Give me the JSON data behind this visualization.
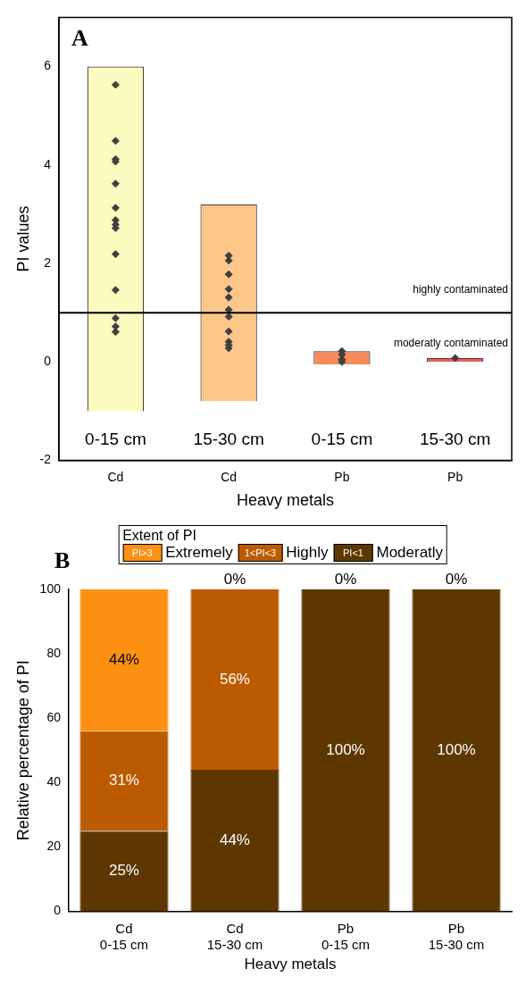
{
  "chart_data": [
    {
      "type": "scatter",
      "xlabel": "Heavy metals",
      "ylabel": "PI values",
      "categories": [
        "Cd",
        "Cd",
        "Pb",
        "Pb"
      ],
      "ylim": [
        -2,
        7
      ],
      "yticks": [
        -2,
        0,
        2,
        4,
        6
      ],
      "grid": false,
      "marker": "diamond",
      "series": [
        {
          "type": "bar",
          "colors": [
            "#fafcc0",
            "#fdc78a",
            "#f88a5c",
            "#ee5a56"
          ],
          "base": [
            -1,
            -0.8,
            -0.05,
            0
          ],
          "values": [
            7,
            4,
            0.27,
            0.08
          ]
        },
        {
          "color": "#404040",
          "values": [
            5.63,
            2.16,
            0.22,
            0.08
          ]
        },
        {
          "color": "#404040",
          "values": [
            4.49,
            2.06,
            0.15,
            null
          ]
        },
        {
          "color": "#404040",
          "values": [
            4.12,
            1.78,
            null,
            null
          ]
        },
        {
          "color": "#404040",
          "values": [
            4.07,
            1.48,
            0.05,
            null
          ]
        },
        {
          "color": "#404040",
          "values": [
            3.62,
            1.31,
            0.0,
            null
          ]
        },
        {
          "color": "#404040",
          "values": [
            3.13,
            1.06,
            null,
            null
          ]
        },
        {
          "color": "#404040",
          "values": [
            2.88,
            0.92,
            null,
            null
          ]
        },
        {
          "color": "#404040",
          "values": [
            2.79,
            0.62,
            null,
            null
          ]
        },
        {
          "color": "#404040",
          "values": [
            2.72,
            0.41,
            null,
            null
          ]
        },
        {
          "color": "#404040",
          "values": [
            2.19,
            0.34,
            null,
            null
          ]
        },
        {
          "color": "#404040",
          "values": [
            1.46,
            0.28,
            null,
            null
          ]
        },
        {
          "color": "#404040",
          "values": [
            0.89,
            null,
            null,
            null
          ]
        },
        {
          "color": "#404040",
          "values": [
            0.72,
            null,
            null,
            null
          ]
        },
        {
          "color": "#404040",
          "values": [
            null,
            null,
            null,
            null
          ]
        },
        {
          "color": "#404040",
          "values": [
            0.61,
            null,
            null,
            null
          ]
        }
      ],
      "ref_lines": [
        {
          "axis": "y",
          "value": 1,
          "color": "#000000",
          "label": "highly contaminated"
        }
      ],
      "annotations": [
        "A",
        "0-15 cm",
        "15-30 cm",
        "0-15 cm",
        "15-30 cm",
        "moderatly contaminated"
      ]
    },
    {
      "type": "bar",
      "stacked": true,
      "xlabel": "Heavy metals",
      "ylabel": "Relative percentage of PI",
      "categories": [
        "Cd 0-15 cm",
        "Cd 15-30 cm",
        "Pb 0-15 cm",
        "Pb 15-30 cm"
      ],
      "ylim": [
        0,
        100
      ],
      "yticks": [
        0,
        20,
        40,
        60,
        80,
        100
      ],
      "grid": false,
      "legend": "top",
      "legend_title": "Extent of PI",
      "series": [
        {
          "name": "PI<1 Moderatly",
          "color": "#5e3700",
          "values": [
            25,
            44,
            100,
            100
          ],
          "value_labels": [
            "25%",
            "44%",
            "100%",
            "100%"
          ]
        },
        {
          "name": "1<PI<3 Highly",
          "color": "#bb5a00",
          "values": [
            31,
            56,
            0,
            0
          ],
          "value_labels": [
            "31%",
            "56%",
            null,
            null
          ]
        },
        {
          "name": "PI>3 Extremely",
          "color": "#fd9013",
          "values": [
            44,
            0,
            0,
            0
          ],
          "value_labels": [
            "44%",
            "0%",
            "0%",
            "0%"
          ]
        }
      ],
      "annotations": [
        "B"
      ]
    }
  ]
}
